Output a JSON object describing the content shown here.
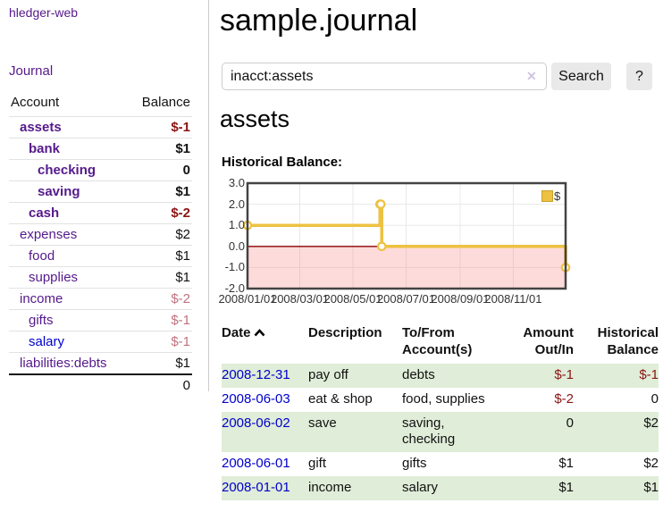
{
  "colors": {
    "link_purple": "#551a8b",
    "link_blue": "#0000cc",
    "neg_strong": "#8b1414",
    "neg_light": "#c0727e",
    "row_green": "#e0edd8",
    "chart_gold": "#edc240",
    "button_gray": "#e9e9e9"
  },
  "brand": {
    "label": "hledger-web"
  },
  "nav": {
    "journal": "Journal"
  },
  "sidebar": {
    "headers": {
      "account": "Account",
      "balance": "Balance"
    },
    "accounts": [
      {
        "name": "assets",
        "balance": "$-1"
      },
      {
        "name": "bank",
        "balance": "$1"
      },
      {
        "name": "checking",
        "balance": "0"
      },
      {
        "name": "saving",
        "balance": "$1"
      },
      {
        "name": "cash",
        "balance": "$-2"
      },
      {
        "name": "expenses",
        "balance": "$2"
      },
      {
        "name": "food",
        "balance": "$1"
      },
      {
        "name": "supplies",
        "balance": "$1"
      },
      {
        "name": "income",
        "balance": "$-2"
      },
      {
        "name": "gifts",
        "balance": "$-1"
      },
      {
        "name": "salary",
        "balance": "$-1"
      },
      {
        "name": "liabilities:debts",
        "balance": "$1"
      }
    ],
    "total": "0"
  },
  "main": {
    "title": "sample.journal",
    "search": {
      "value": "inacct:assets",
      "clear": "✕",
      "submit": "Search",
      "help": "?"
    },
    "account_heading": "assets",
    "section_label": "Historical Balance:"
  },
  "chart_data": {
    "type": "line",
    "style": "step",
    "legend": [
      {
        "name": "$",
        "color": "#edc240"
      }
    ],
    "ylim": [
      -2,
      3
    ],
    "xlim": [
      "2008-01-01",
      "2008-12-31"
    ],
    "y_ticks": [
      {
        "label": "3.0",
        "value": 3
      },
      {
        "label": "2.0",
        "value": 2
      },
      {
        "label": "1.0",
        "value": 1
      },
      {
        "label": "0.0",
        "value": 0
      },
      {
        "label": "-1.0",
        "value": -1
      },
      {
        "label": "-2.0",
        "value": -2
      }
    ],
    "x_ticks": [
      {
        "label": "2008/01/01",
        "date": "2008-01-01"
      },
      {
        "label": "2008/03/01",
        "date": "2008-03-01"
      },
      {
        "label": "2008/05/01",
        "date": "2008-05-01"
      },
      {
        "label": "2008/07/01",
        "date": "2008-07-01"
      },
      {
        "label": "2008/09/01",
        "date": "2008-09-01"
      },
      {
        "label": "2008/11/01",
        "date": "2008-11-01"
      }
    ],
    "series": [
      {
        "name": "$",
        "color": "#edc240",
        "points": [
          {
            "date": "2008-01-01",
            "value": 1
          },
          {
            "date": "2008-06-01",
            "value": 2
          },
          {
            "date": "2008-06-02",
            "value": 2
          },
          {
            "date": "2008-06-03",
            "value": 0
          },
          {
            "date": "2008-12-31",
            "value": -1
          }
        ]
      }
    ],
    "negative_region_fill": "rgba(250,110,110,0.25)",
    "zero_line_color": "#8b0000",
    "grid_color": "#e8e8e8",
    "border_color": "#434343"
  },
  "register": {
    "headers": {
      "date": "Date",
      "description": "Description",
      "accounts": "To/From Account(s)",
      "amount": "Amount Out/In",
      "balance": "Historical Balance"
    },
    "rows": [
      {
        "date": "2008-12-31",
        "description": "pay off",
        "accounts": "debts",
        "amount": "$-1",
        "balance": "$-1"
      },
      {
        "date": "2008-06-03",
        "description": "eat & shop",
        "accounts": "food, supplies",
        "amount": "$-2",
        "balance": "0"
      },
      {
        "date": "2008-06-02",
        "description": "save",
        "accounts": "saving, checking",
        "amount": "0",
        "balance": "$2"
      },
      {
        "date": "2008-06-01",
        "description": "gift",
        "accounts": "gifts",
        "amount": "$1",
        "balance": "$2"
      },
      {
        "date": "2008-01-01",
        "description": "income",
        "accounts": "salary",
        "amount": "$1",
        "balance": "$1"
      }
    ]
  }
}
